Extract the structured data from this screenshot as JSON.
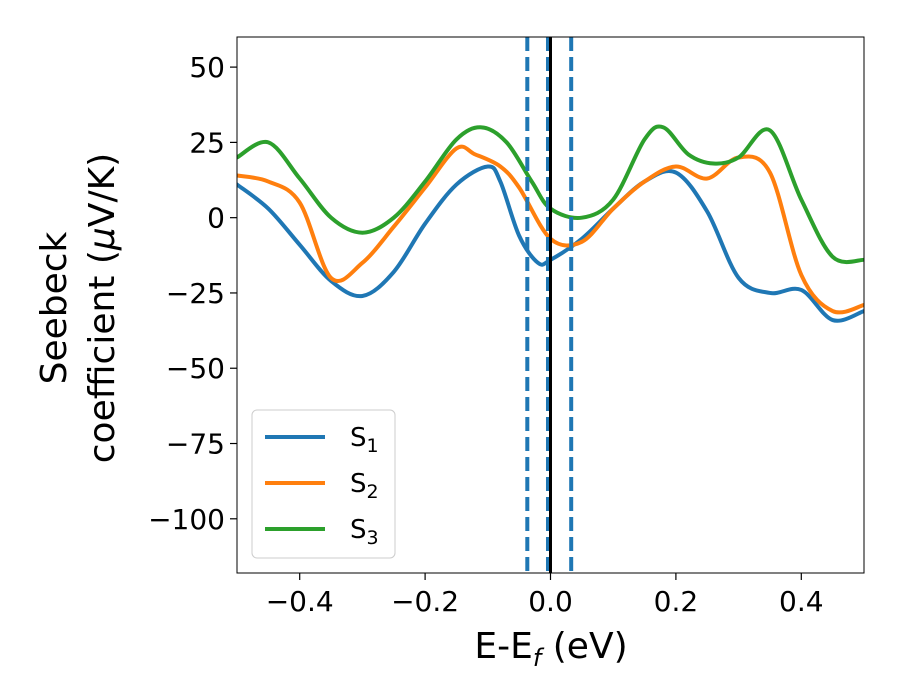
{
  "chart_data": {
    "type": "line",
    "xlabel": "E-E",
    "xlabel_sub": "f",
    "xlabel_unit": " (eV)",
    "ylabel_line1": "Seebeck",
    "ylabel_line2": "coefficient  (",
    "ylabel_mu": "μ",
    "ylabel_unit": "V/K)",
    "xlim": [
      -0.5,
      0.5
    ],
    "ylim": [
      -118,
      60
    ],
    "xticks": [
      -0.4,
      -0.2,
      0.0,
      0.2,
      0.4
    ],
    "xtick_labels": [
      "−0.4",
      "−0.2",
      "0.0",
      "0.2",
      "0.4"
    ],
    "yticks": [
      50,
      25,
      0,
      -25,
      -50,
      -75,
      -100
    ],
    "ytick_labels": [
      "50",
      "25",
      "0",
      "−25",
      "−50",
      "−75",
      "−100"
    ],
    "grid": false,
    "legend_placement": "lower-left",
    "vlines": [
      {
        "x": -0.037,
        "style": "dashed",
        "color": "#1f77b4"
      },
      {
        "x": -0.004,
        "style": "dashed",
        "color": "#1f77b4"
      },
      {
        "x": 0.0,
        "style": "solid",
        "color": "#000000"
      },
      {
        "x": 0.033,
        "style": "dashed",
        "color": "#1f77b4"
      }
    ],
    "series": [
      {
        "name": "S",
        "sub": "1",
        "color": "#1f77b4",
        "x": [
          -0.5,
          -0.45,
          -0.4,
          -0.35,
          -0.3,
          -0.25,
          -0.2,
          -0.15,
          -0.1,
          -0.08,
          -0.05,
          -0.02,
          0.0,
          0.05,
          0.1,
          0.15,
          0.2,
          0.25,
          0.3,
          0.35,
          0.4,
          0.45,
          0.5
        ],
        "y": [
          11,
          3,
          -9,
          -21,
          -26,
          -18,
          -2,
          11,
          17,
          12,
          -6,
          -15,
          -14,
          -7,
          3,
          12,
          15,
          2,
          -20,
          -25,
          -24,
          -34,
          -31
        ]
      },
      {
        "name": "S",
        "sub": "2",
        "color": "#ff7f0e",
        "x": [
          -0.5,
          -0.45,
          -0.4,
          -0.35,
          -0.3,
          -0.25,
          -0.2,
          -0.15,
          -0.12,
          -0.08,
          -0.05,
          0.0,
          0.05,
          0.1,
          0.15,
          0.2,
          0.25,
          0.3,
          0.35,
          0.4,
          0.45,
          0.5
        ],
        "y": [
          14,
          12,
          5,
          -20,
          -15,
          -3,
          10,
          23,
          21,
          17,
          10,
          -7,
          -8,
          3,
          12,
          17,
          13,
          20,
          15,
          -19,
          -31,
          -29
        ]
      },
      {
        "name": "S",
        "sub": "3",
        "color": "#2ca02c",
        "x": [
          -0.5,
          -0.45,
          -0.4,
          -0.35,
          -0.3,
          -0.25,
          -0.2,
          -0.15,
          -0.11,
          -0.07,
          -0.03,
          0.0,
          0.05,
          0.1,
          0.15,
          0.18,
          0.22,
          0.26,
          0.3,
          0.35,
          0.4,
          0.45,
          0.5
        ],
        "y": [
          20,
          25,
          13,
          0,
          -5,
          0,
          12,
          26,
          30,
          25,
          12,
          3,
          0,
          6,
          26,
          30,
          21,
          18,
          20,
          29,
          6,
          -13,
          -14
        ]
      }
    ]
  }
}
